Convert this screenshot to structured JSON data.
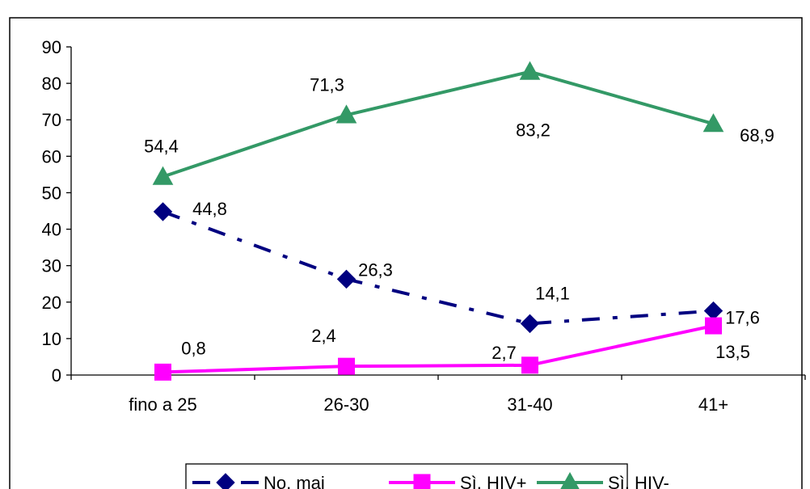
{
  "chart_data": {
    "type": "line",
    "title": "",
    "xlabel": "",
    "ylabel": "",
    "categories": [
      "fino a 25",
      "26-30",
      "31-40",
      "41+"
    ],
    "ylim": [
      0,
      90
    ],
    "yticks": [
      0,
      10,
      20,
      30,
      40,
      50,
      60,
      70,
      80,
      90
    ],
    "grid": false,
    "legend": "bottom",
    "series": [
      {
        "name": "No, mai",
        "values": [
          44.8,
          26.3,
          14.1,
          17.6
        ],
        "labels": [
          "44,8",
          "26,3",
          "14,1",
          "17,6"
        ],
        "color": "#000080",
        "marker": "diamond",
        "dash": "dash-dot"
      },
      {
        "name": "Sì, HIV+",
        "values": [
          0.8,
          2.4,
          2.7,
          13.5
        ],
        "labels": [
          "0,8",
          "2,4",
          "2,7",
          "13,5"
        ],
        "color": "#FF00FF",
        "marker": "square",
        "dash": "solid"
      },
      {
        "name": "Sì, HIV-",
        "values": [
          54.4,
          71.3,
          83.2,
          68.9
        ],
        "labels": [
          "54,4",
          "71,3",
          "83,2",
          "68,9"
        ],
        "color": "#339966",
        "marker": "triangle",
        "dash": "solid"
      }
    ]
  }
}
